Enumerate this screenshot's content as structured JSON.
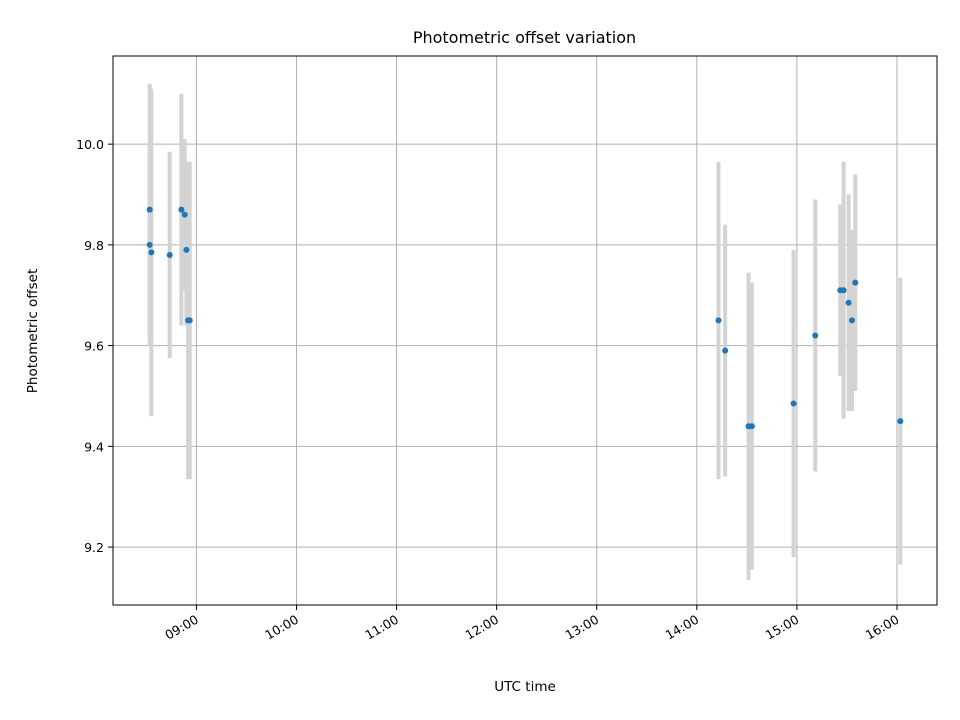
{
  "chart_data": {
    "type": "scatter",
    "title": "Photometric offset variation",
    "xlabel": "UTC time",
    "ylabel": "Photometric offset",
    "x_ticks": [
      "09:00",
      "10:00",
      "11:00",
      "12:00",
      "13:00",
      "14:00",
      "15:00",
      "16:00"
    ],
    "xlim": [
      "08:10",
      "16:24"
    ],
    "y_ticks": [
      "9.2",
      "9.4",
      "9.6",
      "9.8",
      "10.0"
    ],
    "ylim": [
      9.085,
      10.175
    ],
    "grid": true,
    "colors": {
      "point": "#1f77b4",
      "errorbar": "#d3d3d3",
      "grid": "#b0b0b0"
    },
    "series": [
      {
        "points": [
          {
            "x": "08:32",
            "y": 9.8,
            "err": 0.2
          },
          {
            "x": "08:32",
            "y": 9.87,
            "err": 0.25
          },
          {
            "x": "08:33",
            "y": 9.785,
            "err": 0.325
          },
          {
            "x": "08:44",
            "y": 9.78,
            "err": 0.205
          },
          {
            "x": "08:51",
            "y": 9.87,
            "err": 0.23
          },
          {
            "x": "08:53",
            "y": 9.86,
            "err": 0.15
          },
          {
            "x": "08:54",
            "y": 9.79,
            "err": 0.15
          },
          {
            "x": "08:55",
            "y": 9.65,
            "err": 0.315
          },
          {
            "x": "08:56",
            "y": 9.65,
            "err": 0.315
          },
          {
            "x": "14:13",
            "y": 9.65,
            "err": 0.315
          },
          {
            "x": "14:17",
            "y": 9.59,
            "err": 0.25
          },
          {
            "x": "14:31",
            "y": 9.44,
            "err": 0.305
          },
          {
            "x": "14:33",
            "y": 9.44,
            "err": 0.285
          },
          {
            "x": "14:58",
            "y": 9.485,
            "err": 0.305
          },
          {
            "x": "15:11",
            "y": 9.62,
            "err": 0.27
          },
          {
            "x": "15:26",
            "y": 9.71,
            "err": 0.17
          },
          {
            "x": "15:28",
            "y": 9.71,
            "err": 0.255
          },
          {
            "x": "15:31",
            "y": 9.685,
            "err": 0.215
          },
          {
            "x": "15:33",
            "y": 9.65,
            "err": 0.18
          },
          {
            "x": "15:35",
            "y": 9.725,
            "err": 0.215
          },
          {
            "x": "16:02",
            "y": 9.45,
            "err": 0.285
          }
        ]
      }
    ]
  }
}
